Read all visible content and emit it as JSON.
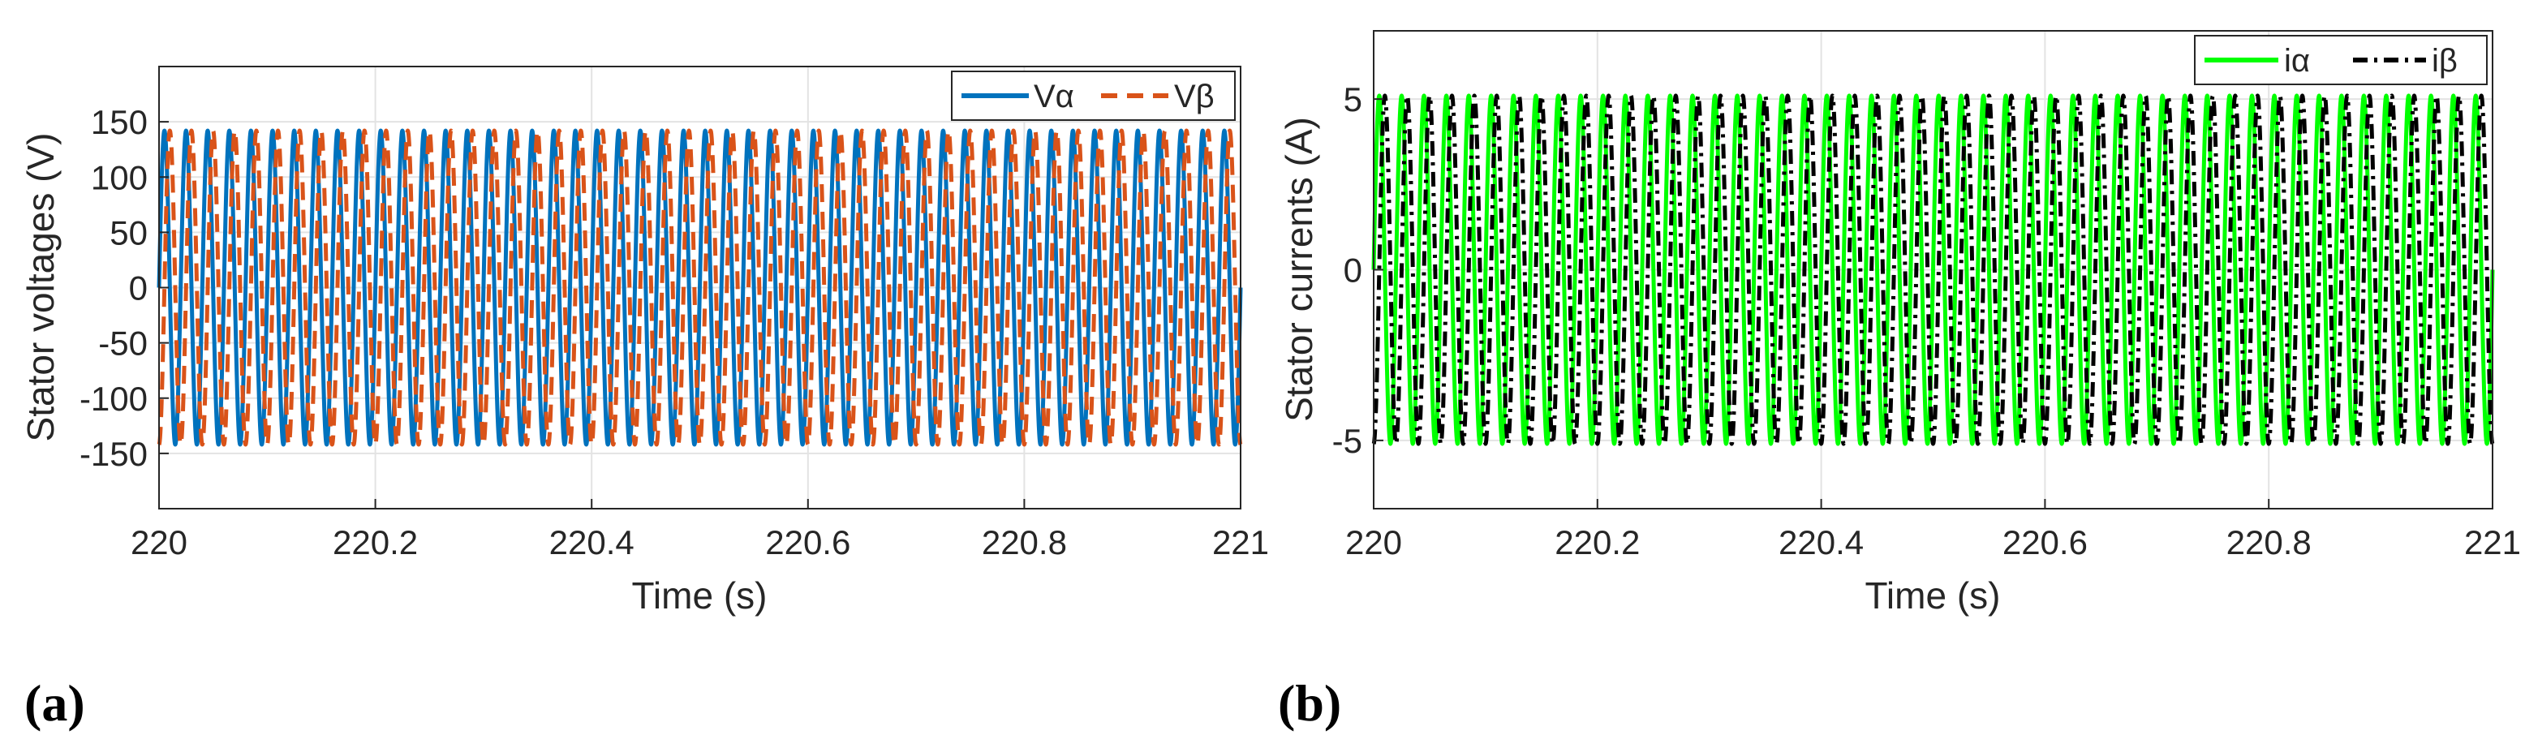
{
  "figure": {
    "panel_labels": [
      "(a)",
      "(b)"
    ]
  },
  "chart_data": [
    {
      "type": "line",
      "panel": "(a)",
      "title": "",
      "xlabel": "Time (s)",
      "ylabel": "Stator voltages (V)",
      "xlim": [
        220,
        221
      ],
      "ylim": [
        -200,
        200
      ],
      "xticks": [
        220,
        220.2,
        220.4,
        220.6,
        220.8,
        221
      ],
      "xtick_labels": [
        "220",
        "220.2",
        "220.4",
        "220.6",
        "220.8",
        "221"
      ],
      "yticks": [
        -150,
        -100,
        -50,
        0,
        50,
        100,
        150
      ],
      "ytick_labels": [
        "-150",
        "-100",
        "-50",
        "0",
        "50",
        "100",
        "150"
      ],
      "grid": true,
      "legend_position": "top-right",
      "series": [
        {
          "name": "Vα",
          "color": "#0072BD",
          "style": "solid",
          "waveform": "sinusoid",
          "amplitude": 142,
          "frequency_hz": 50,
          "phase_deg": 0
        },
        {
          "name": "Vβ",
          "color": "#D95319",
          "style": "dashed",
          "waveform": "sinusoid",
          "amplitude": 142,
          "frequency_hz": 50,
          "phase_deg": -90
        }
      ]
    },
    {
      "type": "line",
      "panel": "(b)",
      "title": "",
      "xlabel": "Time (s)",
      "ylabel": "Stator currents (A)",
      "xlim": [
        220,
        221
      ],
      "ylim": [
        -7,
        7
      ],
      "xticks": [
        220,
        220.2,
        220.4,
        220.6,
        220.8,
        221
      ],
      "xtick_labels": [
        "220",
        "220.2",
        "220.4",
        "220.6",
        "220.8",
        "221"
      ],
      "yticks": [
        -5,
        0,
        5
      ],
      "ytick_labels": [
        "-5",
        "0",
        "5"
      ],
      "grid": true,
      "legend_position": "top-right",
      "series": [
        {
          "name": "iα",
          "color": "#00FF00",
          "style": "solid",
          "waveform": "sinusoid",
          "amplitude": 5.1,
          "frequency_hz": 50,
          "phase_deg": 0
        },
        {
          "name": "iβ",
          "color": "#000000",
          "style": "dash-dot",
          "waveform": "sinusoid",
          "amplitude": 5.1,
          "frequency_hz": 50,
          "phase_deg": -90
        }
      ]
    }
  ]
}
